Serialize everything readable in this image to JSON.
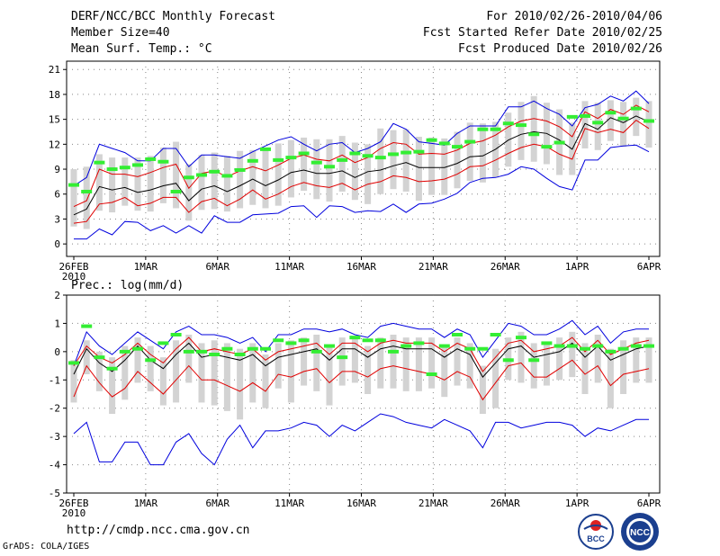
{
  "header": {
    "title": "DERF/NCC/BCC Monthly Forecast",
    "member_size": "Member Size=40",
    "variable": "Mean Surf. Temp.: °C",
    "period": "For 2010/02/26-2010/04/06",
    "started": "Fcst Started Refer Date 2010/02/25",
    "produced": "Fcst Produced Date 2010/02/26"
  },
  "footer": {
    "url": "http://cmdp.ncc.cma.gov.cn",
    "credit": "GrADS: COLA/IGES"
  },
  "logos": {
    "bcc": "BCC",
    "ncc": "NCC"
  },
  "colors": {
    "ensemble_range": "#d3d3d3",
    "mean": "#000000",
    "inner_band": "#e00000",
    "outer_band": "#0000dd",
    "observed": "#33ee33",
    "grid": "#888888"
  },
  "chart_data": [
    {
      "type": "line",
      "title": "Mean Surf. Temp.: °C",
      "x_tick_labels": [
        "26FEB",
        "1MAR",
        "6MAR",
        "11MAR",
        "16MAR",
        "21MAR",
        "26MAR",
        "1APR",
        "6APR"
      ],
      "x_year_label": "2010",
      "x_range": [
        0,
        39
      ],
      "yticks": [
        0,
        3,
        6,
        9,
        12,
        15,
        18,
        21
      ],
      "ylim": [
        -1.5,
        22
      ],
      "series": [
        {
          "name": "ensemble mean",
          "color": "#000000",
          "values": [
            3.5,
            4.2,
            6.9,
            6.5,
            6.8,
            6.2,
            6.5,
            7,
            7.3,
            5.2,
            6.6,
            7,
            6.3,
            7,
            7.8,
            7,
            7.7,
            8.6,
            8.9,
            8.5,
            8.5,
            8.8,
            8,
            8.7,
            8.9,
            9.4,
            9.8,
            9.2,
            9.2,
            9.2,
            9.7,
            10.5,
            10.6,
            11.4,
            12.5,
            13.2,
            13.5,
            13.3,
            12.5,
            11.4
          ]
        },
        {
          "name": "upper inner",
          "color": "#e00000",
          "values": [
            4.5,
            5.2,
            9,
            8.4,
            8.4,
            8.1,
            8.6,
            9.2,
            9.6,
            6.7,
            8.5,
            8.8,
            8.1,
            8.8,
            9.3,
            8.8,
            9.5,
            10.3,
            10.7,
            10.2,
            10,
            10.7,
            9.8,
            10.4,
            11.5,
            12.2,
            12,
            10.8,
            10.9,
            10.8,
            11.3,
            12.1,
            12.4,
            13.1,
            14.1,
            14.8,
            15.1,
            14.8,
            14.1,
            12.9
          ]
        },
        {
          "name": "lower inner",
          "color": "#e00000",
          "values": [
            2.5,
            2.7,
            4.8,
            5,
            5.6,
            4.6,
            4.9,
            5.6,
            5.6,
            3.8,
            5.1,
            5.5,
            4.6,
            5.4,
            6.5,
            5.4,
            6,
            6.9,
            7.4,
            7,
            6.8,
            7.3,
            6.5,
            7.2,
            7.5,
            8.2,
            8,
            7.5,
            7.6,
            7.8,
            8.4,
            9.3,
            9.4,
            10.1,
            10.9,
            11.6,
            12,
            11.7,
            10.8,
            10.2
          ]
        },
        {
          "name": "upper outer",
          "color": "#0000dd",
          "values": [
            7,
            8,
            12,
            11.5,
            11,
            10,
            10,
            11.5,
            11.5,
            9.3,
            10.7,
            10.7,
            10.5,
            10.3,
            11.1,
            11.8,
            12.5,
            12.9,
            12,
            11.2,
            12,
            12.2,
            11,
            11.5,
            12.3,
            14.5,
            13.8,
            12.3,
            12.1,
            11.9,
            13.3,
            14.2,
            14.2,
            14.2,
            16.5,
            16.5,
            17.2,
            16.3,
            15.6,
            14.2
          ]
        },
        {
          "name": "lower outer",
          "color": "#0000dd",
          "values": [
            0.6,
            0.6,
            1.8,
            1.1,
            2.7,
            2.6,
            1.6,
            2.2,
            1.3,
            2.2,
            1.3,
            3.4,
            2.6,
            2.6,
            3.5,
            3.6,
            3.7,
            4.5,
            4.6,
            3.2,
            4.6,
            4.5,
            3.8,
            4,
            3.9,
            4.8,
            3.8,
            4.8,
            4.9,
            5.4,
            6.1,
            7.4,
            7.9,
            8,
            8.4,
            9.3,
            9,
            7.9,
            6.9,
            6.5
          ]
        },
        {
          "name": "observed",
          "color": "#33ee33",
          "values": [
            7.1,
            6.3,
            9.8,
            9,
            9.2,
            9.5,
            10.2,
            9.9,
            6.3,
            8,
            8.3,
            8.7,
            8.2,
            8.9,
            10,
            11.4,
            10.1,
            10.4,
            10.9,
            9.8,
            9.3,
            10.1,
            10.9,
            10.6,
            10.4,
            10.8,
            11,
            11.1,
            12.5,
            12.1,
            11.7,
            12.3,
            13.8,
            13.8,
            14.5,
            14.3,
            13.2,
            11.7,
            12.2,
            15.3
          ]
        },
        {
          "name": "ensemble min",
          "color": "#d3d3d3",
          "values": [
            2.1,
            1.8,
            4,
            3.8,
            4.6,
            4,
            3.9,
            4.9,
            4.3,
            2.8,
            4.1,
            4.2,
            3.9,
            4.3,
            4.7,
            4.3,
            4.6,
            5.6,
            6.4,
            5.4,
            5.1,
            6.3,
            5.3,
            4.8,
            6,
            6.6,
            6.3,
            5.2,
            5.9,
            5.9,
            6.7,
            7.6,
            7.4,
            8,
            9.3,
            10.1,
            9.9,
            9.6,
            8.3,
            8.3
          ]
        },
        {
          "name": "ensemble max",
          "color": "#d3d3d3",
          "values": [
            9,
            9.3,
            10.8,
            10.4,
            10.4,
            10.4,
            10.6,
            11.6,
            12.3,
            9.6,
            10.7,
            11,
            10.6,
            11.2,
            11.3,
            11.4,
            12.1,
            12.5,
            12.8,
            12.6,
            12.6,
            13,
            12.2,
            12,
            13.9,
            13.7,
            13.8,
            12.9,
            12.8,
            12.7,
            13.5,
            14.6,
            14.5,
            14.7,
            15.8,
            17.1,
            17.8,
            17,
            16.2,
            14.6
          ]
        }
      ],
      "series_tail": [
        {
          "name": "ensemble mean",
          "values": [
            14.5,
            13.8,
            15.2,
            14.6,
            15.4,
            14.7
          ]
        },
        {
          "name": "upper inner",
          "values": [
            15.9,
            15.1,
            16.2,
            15.6,
            16.7,
            15.9
          ]
        },
        {
          "name": "lower inner",
          "values": [
            13.9,
            13.4,
            13.8,
            13.4,
            14.9,
            13.9
          ]
        },
        {
          "name": "upper outer",
          "values": [
            16.4,
            16.8,
            17.8,
            17.2,
            18.4,
            16.9
          ]
        },
        {
          "name": "lower outer",
          "values": [
            10.1,
            10.1,
            11.6,
            11.8,
            11.9,
            11.1
          ]
        },
        {
          "name": "observed",
          "values": [
            15.4,
            14.6,
            15.8,
            15.1,
            16.3,
            14.8
          ]
        },
        {
          "name": "ensemble min",
          "values": [
            11.5,
            11.3,
            12.4,
            11.7,
            13,
            11.6
          ]
        },
        {
          "name": "ensemble max",
          "values": [
            17.2,
            17,
            17.3,
            17.1,
            17.6,
            17.2
          ]
        }
      ]
    },
    {
      "type": "line",
      "title": "Prec.: log(mm/d)",
      "x_tick_labels": [
        "26FEB",
        "1MAR",
        "6MAR",
        "11MAR",
        "16MAR",
        "21MAR",
        "26MAR",
        "1APR",
        "6APR"
      ],
      "x_year_label": "2010",
      "x_range": [
        0,
        39
      ],
      "yticks": [
        -5,
        -4,
        -3,
        -2,
        -1,
        0,
        1,
        2
      ],
      "ylim": [
        -5,
        2
      ],
      "series": [
        {
          "name": "ensemble mean",
          "color": "#000000",
          "values": [
            -0.8,
            0.1,
            -0.4,
            -0.7,
            -0.3,
            0.2,
            -0.3,
            -0.6,
            -0.1,
            0.3,
            -0.2,
            -0.1,
            -0.2,
            -0.3,
            -0.1,
            -0.5,
            -0.2,
            -0.1,
            0,
            0.1,
            -0.3,
            0.1,
            0.1,
            -0.2,
            0.1,
            0.2,
            0.1,
            0.1,
            0.1,
            -0.2,
            0.1,
            -0.1,
            -0.9,
            -0.4,
            0.1,
            0.2,
            -0.2,
            -0.1,
            0,
            0.3,
            -0.2,
            0.2,
            -0.3,
            -0.1,
            0.1,
            0.2
          ]
        },
        {
          "name": "upper inner",
          "color": "#e00000",
          "values": [
            -0.5,
            0.2,
            -0.2,
            -0.4,
            -0.1,
            0.3,
            -0.1,
            -0.4,
            0.1,
            0.5,
            0,
            0.1,
            0,
            -0.1,
            0.1,
            -0.3,
            0,
            0.1,
            0.2,
            0.3,
            -0.1,
            0.3,
            0.3,
            0,
            0.3,
            0.4,
            0.3,
            0.3,
            0.3,
            0,
            0.3,
            0.1,
            -0.7,
            -0.2,
            0.3,
            0.4,
            0,
            0.1,
            0.2,
            0.5,
            0,
            0.4,
            -0.1,
            0.1,
            0.3,
            0.4
          ]
        },
        {
          "name": "lower inner",
          "color": "#e00000",
          "values": [
            -1.6,
            -0.5,
            -1.1,
            -1.6,
            -1.3,
            -0.7,
            -1.1,
            -1.5,
            -1,
            -0.5,
            -1,
            -1,
            -1.2,
            -1.4,
            -1.1,
            -1.4,
            -0.8,
            -0.9,
            -0.7,
            -0.6,
            -1.1,
            -0.7,
            -0.7,
            -0.9,
            -0.6,
            -0.5,
            -0.6,
            -0.7,
            -0.8,
            -1,
            -0.7,
            -0.9,
            -1.7,
            -1.1,
            -0.5,
            -0.4,
            -0.9,
            -0.9,
            -0.6,
            -0.3,
            -0.8,
            -0.5,
            -1.2,
            -0.8,
            -0.7,
            -0.6
          ]
        },
        {
          "name": "upper outer",
          "color": "#0000dd",
          "values": [
            -0.5,
            0.7,
            0.2,
            -0.1,
            0.3,
            0.7,
            0.4,
            0.1,
            0.7,
            0.9,
            0.6,
            0.6,
            0.5,
            0.3,
            0.5,
            0,
            0.6,
            0.6,
            0.8,
            0.8,
            0.7,
            0.8,
            0.6,
            0.5,
            0.9,
            1,
            0.9,
            0.8,
            0.8,
            0.5,
            0.8,
            0.6,
            -0.2,
            0.4,
            1,
            0.9,
            0.6,
            0.6,
            0.8,
            1.1,
            0.6,
            0.9,
            0.3,
            0.7,
            0.8,
            0.8
          ]
        },
        {
          "name": "lower outer",
          "color": "#0000dd",
          "values": [
            -2.9,
            -2.5,
            -3.9,
            -3.9,
            -3.2,
            -3.2,
            -4,
            -4,
            -3.2,
            -2.9,
            -3.6,
            -4,
            -3.1,
            -2.6,
            -3.4,
            -2.8,
            -2.8,
            -2.7,
            -2.5,
            -2.6,
            -3,
            -2.6,
            -2.8,
            -2.5,
            -2.2,
            -2.3,
            -2.5,
            -2.6,
            -2.7,
            -2.4,
            -2.6,
            -2.8,
            -3.4,
            -2.5,
            -2.5,
            -2.7,
            -2.6,
            -2.5,
            -2.5,
            -2.6,
            -3,
            -2.7,
            -2.8,
            -2.6,
            -2.4,
            -2.4
          ]
        },
        {
          "name": "observed",
          "color": "#33ee33",
          "values": [
            -0.4,
            0.9,
            -0.2,
            -0.6,
            0,
            0.1,
            -0.3,
            0.3,
            0.6,
            0,
            0,
            -0.1,
            0.1,
            -0.1,
            0.1,
            0.1,
            0.4,
            0.3,
            0.4,
            0,
            0.2,
            -0.2,
            0.5,
            0.4,
            0.4,
            0,
            0.2,
            0.3,
            -0.8,
            0.2,
            0.6,
            0.1,
            0.1,
            0.6,
            -0.3,
            0.5,
            -0.3,
            0.3,
            0.2,
            0.2,
            0.1,
            0.2,
            0,
            0.1,
            0.2,
            0.2
          ]
        },
        {
          "name": "ensemble min",
          "color": "#d3d3d3",
          "values": [
            -1.8,
            -0.8,
            -1.4,
            -2.2,
            -1.7,
            -1.1,
            -1.4,
            -1.9,
            -1.8,
            -1.1,
            -1.8,
            -1.9,
            -2.1,
            -2.4,
            -1.8,
            -2,
            -1.3,
            -1.8,
            -1.2,
            -1.4,
            -1.9,
            -1.2,
            -1.1,
            -1.5,
            -1.3,
            -1.3,
            -1.4,
            -1.4,
            -1.3,
            -1.6,
            -1.2,
            -1.3,
            -2.2,
            -2,
            -1,
            -1.1,
            -1.3,
            -1.2,
            -1,
            -0.9,
            -1.5,
            -1.1,
            -2,
            -1.5,
            -1.1,
            -1.1
          ]
        },
        {
          "name": "ensemble max",
          "color": "#d3d3d3",
          "values": [
            -0.3,
            0.4,
            0,
            -0.2,
            0.2,
            0.5,
            0.2,
            -0.2,
            0.4,
            0.6,
            0.3,
            0.4,
            0.3,
            0.1,
            0.3,
            -0.1,
            0.3,
            0.4,
            0.5,
            0.6,
            0.2,
            0.5,
            0.5,
            0.2,
            0.5,
            0.6,
            0.5,
            0.5,
            0.5,
            0.2,
            0.5,
            0.3,
            -0.5,
            0.1,
            0.5,
            0.7,
            0.3,
            0.3,
            0.5,
            0.7,
            0.3,
            0.6,
            0.1,
            0.4,
            0.5,
            0.5
          ]
        }
      ]
    }
  ]
}
